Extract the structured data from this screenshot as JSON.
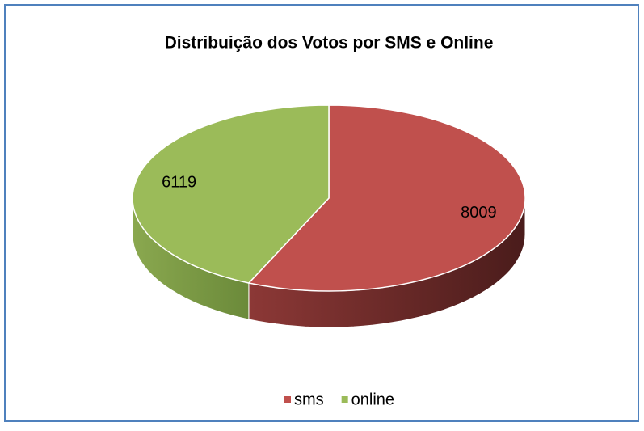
{
  "chart_data": {
    "type": "pie3d",
    "title": "Distribuição dos Votos por SMS e Online",
    "categories": [
      "sms",
      "online"
    ],
    "values": [
      8009,
      6119
    ],
    "colors": [
      "#c0504d",
      "#9bbb59"
    ],
    "legend": "bottom"
  }
}
